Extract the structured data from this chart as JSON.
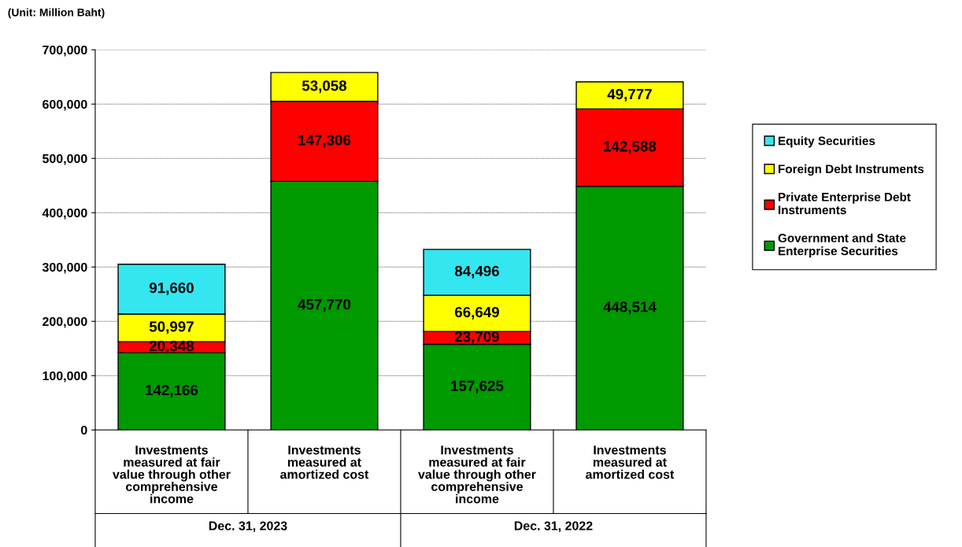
{
  "chart_data": {
    "type": "bar",
    "stacked": true,
    "categories": [
      "Investments\nmeasured at fair\nvalue through other\ncomprehensive\nincome",
      "Investments\nmeasured at\namortized cost",
      "Investments\nmeasured at fair\nvalue through other\ncomprehensive\nincome",
      "Investments\nmeasured at\namortized cost"
    ],
    "series": [
      {
        "name": "Government and State\nEnterprise Securities",
        "color": "#009900",
        "values": [
          142166,
          457770,
          157625,
          448514
        ],
        "value_labels": [
          "142,166",
          "457,770",
          "157,625",
          "448,514"
        ]
      },
      {
        "name": "Private Enterprise Debt\nInstruments",
        "color": "#ff0000",
        "values": [
          20348,
          147306,
          23709,
          142588
        ],
        "value_labels": [
          "20,348",
          "147,306",
          "23,709",
          "142,588"
        ]
      },
      {
        "name": "Foreign Debt Instruments",
        "color": "#ffff00",
        "values": [
          50997,
          53058,
          66649,
          49777
        ],
        "value_labels": [
          "50,997",
          "53,058",
          "66,649",
          "49,777"
        ]
      },
      {
        "name": "Equity Securities",
        "color": "#33e6f0",
        "values": [
          91660,
          null,
          84496,
          null
        ],
        "value_labels": [
          "91,660",
          null,
          "84,496",
          null
        ]
      }
    ],
    "ylim": [
      0,
      700000
    ],
    "yticks": [
      {
        "value": 0,
        "label": "0"
      },
      {
        "value": 100000,
        "label": "100,000"
      },
      {
        "value": 200000,
        "label": "200,000"
      },
      {
        "value": 300000,
        "label": "300,000"
      },
      {
        "value": 400000,
        "label": "400,000"
      },
      {
        "value": 500000,
        "label": "500,000"
      },
      {
        "value": 600000,
        "label": "600,000"
      },
      {
        "value": 700000,
        "label": "700,000"
      }
    ],
    "grid": "y",
    "legend": "right",
    "annotations": [
      "(Unit: Million Baht)",
      "Dec. 31, 2023",
      "Dec. 31, 2022"
    ]
  }
}
